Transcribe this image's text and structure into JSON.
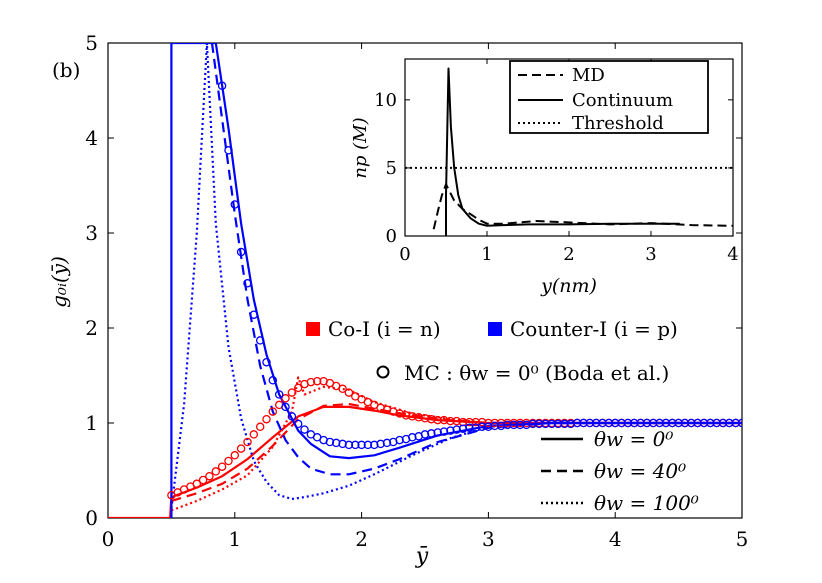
{
  "chart_data": {
    "type": "line",
    "panel_label": "(b)",
    "xlabel": "ȳ",
    "ylabel": "g₀ᵢ(ȳ)",
    "xlim": [
      0,
      5
    ],
    "ylim": [
      0,
      5
    ],
    "xticks": [
      "0",
      "1",
      "2",
      "3",
      "4",
      "5"
    ],
    "yticks": [
      "0",
      "1",
      "2",
      "3",
      "4",
      "5"
    ],
    "colors": {
      "co_ion": "#ff0000",
      "counter_ion": "#0000ff",
      "black": "#000000"
    },
    "legend_species": {
      "co_ion": "Co-I (i = n)",
      "counter_ion": "Counter-I (i = p)",
      "mc": "MC : θw = 0⁰ (Boda et al.)"
    },
    "legend_styles": {
      "solid": "θw = 0⁰",
      "dashed": "θw = 40⁰",
      "dotted": "θw = 100⁰"
    },
    "series": [
      {
        "name": "Co-I θw=0⁰",
        "color": "#ff0000",
        "style": "solid",
        "x": [
          0,
          0.49,
          0.5,
          0.7,
          0.9,
          1.1,
          1.3,
          1.5,
          1.7,
          1.9,
          2.1,
          2.3,
          2.6,
          3.0,
          3.5,
          4.0,
          4.5,
          5.0
        ],
        "y": [
          0,
          0,
          0.22,
          0.32,
          0.44,
          0.62,
          0.85,
          1.07,
          1.17,
          1.17,
          1.13,
          1.08,
          1.03,
          1.0,
          1.0,
          1.0,
          1.0,
          1.0
        ]
      },
      {
        "name": "Co-I θw=40⁰",
        "color": "#ff0000",
        "style": "dashed",
        "x": [
          0.5,
          0.7,
          0.9,
          1.1,
          1.3,
          1.5,
          1.7,
          1.9,
          2.1,
          2.4,
          2.7,
          3.0,
          3.5,
          4.0,
          5.0
        ],
        "y": [
          0.18,
          0.26,
          0.36,
          0.52,
          0.76,
          1.04,
          1.18,
          1.2,
          1.15,
          1.08,
          1.03,
          1.0,
          1.0,
          1.0,
          1.0
        ]
      },
      {
        "name": "Co-I θw=100⁰",
        "color": "#ff0000",
        "style": "dotted",
        "x": [
          0.5,
          0.7,
          0.9,
          1.1,
          1.3,
          1.45,
          1.5,
          1.55,
          1.7,
          1.9,
          2.1,
          2.4,
          2.7,
          3.0,
          3.5,
          4.0,
          5.0
        ],
        "y": [
          0.08,
          0.18,
          0.3,
          0.45,
          0.75,
          1.12,
          1.48,
          1.3,
          1.38,
          1.35,
          1.22,
          1.1,
          1.04,
          1.0,
          1.0,
          1.0,
          1.0
        ]
      },
      {
        "name": "Counter-I θw=0⁰",
        "color": "#0000ff",
        "style": "solid",
        "x": [
          0.49,
          0.5,
          0.5,
          0.85,
          0.95,
          1.05,
          1.15,
          1.25,
          1.35,
          1.5,
          1.6,
          1.75,
          1.9,
          2.1,
          2.3,
          2.6,
          3.0,
          3.5,
          4.0,
          5.0
        ],
        "y": [
          0,
          0,
          5,
          5,
          4.1,
          3.1,
          2.3,
          1.72,
          1.3,
          0.92,
          0.78,
          0.65,
          0.63,
          0.66,
          0.74,
          0.87,
          0.97,
          1.0,
          1.0,
          1.0
        ]
      },
      {
        "name": "Counter-I θw=40⁰",
        "color": "#0000ff",
        "style": "dashed",
        "x": [
          0.82,
          0.9,
          1.0,
          1.1,
          1.2,
          1.3,
          1.4,
          1.5,
          1.6,
          1.75,
          1.9,
          2.1,
          2.3,
          2.6,
          3.0,
          3.5,
          4.0,
          5.0
        ],
        "y": [
          5,
          4.2,
          3.2,
          2.3,
          1.6,
          1.12,
          0.82,
          0.64,
          0.52,
          0.46,
          0.46,
          0.52,
          0.62,
          0.8,
          0.95,
          1.0,
          1.0,
          1.0
        ]
      },
      {
        "name": "Counter-I θw=100⁰",
        "color": "#0000ff",
        "style": "dotted",
        "x": [
          0.5,
          0.6,
          0.7,
          0.78,
          0.85,
          0.95,
          1.05,
          1.15,
          1.25,
          1.35,
          1.45,
          1.55,
          1.7,
          1.9,
          2.1,
          2.4,
          2.7,
          3.0,
          3.5,
          4.0,
          5.0
        ],
        "y": [
          0.1,
          1.2,
          3.0,
          5.0,
          3.1,
          1.8,
          1.05,
          0.6,
          0.38,
          0.24,
          0.2,
          0.22,
          0.26,
          0.34,
          0.46,
          0.66,
          0.84,
          0.96,
          1.0,
          1.0,
          1.0
        ]
      }
    ],
    "mc_points": [
      {
        "name": "MC Co-I",
        "color": "#ff0000",
        "x": [
          0.5,
          0.55,
          0.6,
          0.65,
          0.7,
          0.75,
          0.8,
          0.85,
          0.9,
          0.95,
          1.0,
          1.05,
          1.1,
          1.15,
          1.2,
          1.25,
          1.3,
          1.35,
          1.4,
          1.45,
          1.5,
          1.55,
          1.6,
          1.65,
          1.7,
          1.75,
          1.8,
          1.85,
          1.9,
          1.95,
          2.0,
          2.05,
          2.1,
          2.15,
          2.2,
          2.25,
          2.3,
          2.35,
          2.4,
          2.45,
          2.5,
          2.55,
          2.6,
          2.65,
          2.7,
          2.75,
          2.8,
          2.85,
          2.9,
          2.95,
          3.0,
          3.05,
          3.1,
          3.15,
          3.2,
          3.25,
          3.3,
          3.35,
          3.4,
          3.45,
          3.5,
          3.55,
          3.6,
          3.65,
          3.7,
          3.75,
          3.8,
          3.85,
          3.9,
          3.95,
          4.0,
          4.05,
          4.1,
          4.15,
          4.2,
          4.25,
          4.3,
          4.35,
          4.4,
          4.45,
          4.5,
          4.55,
          4.6,
          4.65,
          4.7,
          4.75,
          4.8,
          4.85,
          4.9,
          4.95,
          5.0
        ],
        "y": [
          0.24,
          0.27,
          0.3,
          0.33,
          0.36,
          0.4,
          0.44,
          0.49,
          0.54,
          0.6,
          0.66,
          0.73,
          0.8,
          0.88,
          0.96,
          1.04,
          1.12,
          1.19,
          1.26,
          1.32,
          1.37,
          1.41,
          1.43,
          1.44,
          1.44,
          1.42,
          1.39,
          1.36,
          1.32,
          1.28,
          1.25,
          1.22,
          1.19,
          1.16,
          1.14,
          1.12,
          1.1,
          1.08,
          1.07,
          1.06,
          1.05,
          1.04,
          1.03,
          1.03,
          1.02,
          1.02,
          1.01,
          1.01,
          1.01,
          1.01,
          1.0,
          1.0,
          1.0,
          1.0,
          1.0,
          1.0,
          1.0,
          1.0,
          1.0,
          1.0,
          1.0,
          1.0,
          1.0,
          1.0,
          1.0,
          1.0,
          1.0,
          1.0,
          1.0,
          1.0,
          1.0,
          1.0,
          1.0,
          1.0,
          1.0,
          1.0,
          1.0,
          1.0,
          1.0,
          1.0,
          1.0,
          1.0,
          1.0,
          1.0,
          1.0,
          1.0,
          1.0,
          1.0,
          1.0,
          1.0,
          1.0
        ]
      },
      {
        "name": "MC Counter-I",
        "color": "#0000ff",
        "x": [
          0.9,
          0.95,
          1.0,
          1.05,
          1.1,
          1.15,
          1.2,
          1.25,
          1.3,
          1.35,
          1.4,
          1.45,
          1.5,
          1.55,
          1.6,
          1.65,
          1.7,
          1.75,
          1.8,
          1.85,
          1.9,
          1.95,
          2.0,
          2.05,
          2.1,
          2.15,
          2.2,
          2.25,
          2.3,
          2.35,
          2.4,
          2.45,
          2.5,
          2.55,
          2.6,
          2.65,
          2.7,
          2.75,
          2.8,
          2.85,
          2.9,
          2.95,
          3.0,
          3.05,
          3.1,
          3.15,
          3.2,
          3.25,
          3.3,
          3.35,
          3.4,
          3.45,
          3.5,
          3.55,
          3.6,
          3.65,
          3.7,
          3.75,
          3.8,
          3.85,
          3.9,
          3.95,
          4.0,
          4.05,
          4.1,
          4.15,
          4.2,
          4.25,
          4.3,
          4.35,
          4.4,
          4.45,
          4.5,
          4.55,
          4.6,
          4.65,
          4.7,
          4.75,
          4.8,
          4.85,
          4.9,
          4.95,
          5.0
        ],
        "y": [
          4.55,
          3.87,
          3.3,
          2.8,
          2.47,
          2.14,
          1.87,
          1.64,
          1.45,
          1.3,
          1.17,
          1.07,
          0.99,
          0.93,
          0.88,
          0.85,
          0.82,
          0.8,
          0.79,
          0.78,
          0.77,
          0.77,
          0.77,
          0.77,
          0.77,
          0.78,
          0.79,
          0.8,
          0.82,
          0.83,
          0.85,
          0.86,
          0.88,
          0.89,
          0.9,
          0.91,
          0.92,
          0.93,
          0.94,
          0.95,
          0.95,
          0.96,
          0.96,
          0.97,
          0.97,
          0.98,
          0.98,
          0.98,
          0.98,
          0.99,
          0.99,
          0.99,
          0.99,
          0.99,
          0.99,
          0.99,
          1.0,
          1.0,
          1.0,
          1.0,
          1.0,
          1.0,
          1.0,
          1.0,
          1.0,
          1.0,
          1.0,
          1.0,
          1.0,
          1.0,
          1.0,
          1.0,
          1.0,
          1.0,
          1.0,
          1.0,
          1.0,
          1.0,
          1.0,
          1.0,
          1.0,
          1.0,
          1.0
        ]
      }
    ],
    "inset": {
      "xlabel": "y(nm)",
      "ylabel": "np (M)",
      "xlim": [
        0,
        4
      ],
      "ylim": [
        0,
        13
      ],
      "xticks": [
        "0",
        "1",
        "2",
        "3",
        "4"
      ],
      "yticks": [
        "0",
        "5",
        "10"
      ],
      "legend": {
        "md": "MD",
        "continuum": "Continuum",
        "threshold": "Threshold"
      },
      "threshold": 5,
      "series": [
        {
          "name": "MD",
          "style": "dashed",
          "x": [
            0.35,
            0.4,
            0.45,
            0.5,
            0.55,
            0.6,
            0.7,
            0.8,
            0.9,
            1.0,
            1.2,
            1.4,
            1.6,
            1.8,
            2.0,
            2.5,
            3.0,
            3.5,
            4.0
          ],
          "y": [
            0.5,
            1.8,
            3.0,
            3.8,
            3.2,
            2.6,
            2.0,
            1.6,
            1.2,
            0.9,
            0.9,
            1.0,
            1.1,
            1.05,
            1.0,
            0.85,
            0.95,
            0.8,
            0.75
          ]
        },
        {
          "name": "Continuum",
          "style": "solid",
          "x": [
            0.5,
            0.5,
            0.53,
            0.56,
            0.6,
            0.65,
            0.7,
            0.8,
            0.9,
            1.0,
            1.2,
            1.5,
            2.0,
            2.5,
            3.0,
            3.35
          ],
          "y": [
            0,
            3.0,
            12.3,
            8.0,
            5.0,
            3.0,
            2.0,
            1.3,
            0.9,
            0.75,
            0.8,
            0.85,
            0.85,
            0.9,
            0.9,
            0.9
          ]
        }
      ]
    }
  }
}
